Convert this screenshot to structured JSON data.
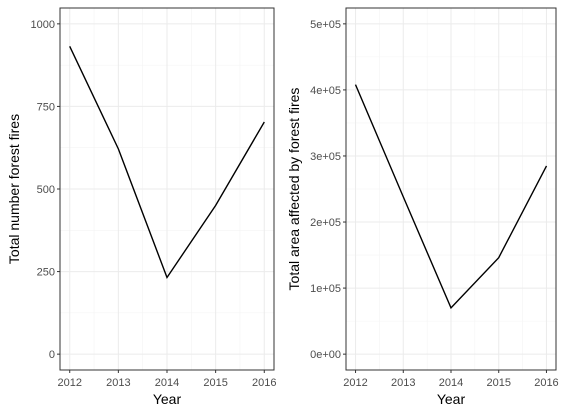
{
  "chart_data": [
    {
      "type": "line",
      "x": [
        2012,
        2013,
        2014,
        2015,
        2016
      ],
      "values": [
        932,
        621,
        232,
        450,
        703
      ],
      "xlabel": "Year",
      "ylabel": "Total number forest fires",
      "xlim": [
        2011.8,
        2016.2
      ],
      "ylim": [
        -48,
        1048
      ],
      "yticks": [
        0,
        250,
        500,
        750,
        1000
      ],
      "ytick_labels": [
        "0",
        "250",
        "500",
        "750",
        "1000"
      ],
      "xticks": [
        2012,
        2013,
        2014,
        2015,
        2016
      ],
      "xtick_labels": [
        "2012",
        "2013",
        "2014",
        "2015",
        "2016"
      ],
      "grid": true
    },
    {
      "type": "line",
      "x": [
        2012,
        2013,
        2014,
        2015,
        2016
      ],
      "values": [
        408000,
        238000,
        70000,
        146000,
        285000
      ],
      "xlabel": "Year",
      "ylabel": "Total area affected by forest fires",
      "xlim": [
        2011.8,
        2016.2
      ],
      "ylim": [
        -24000,
        524000
      ],
      "yticks": [
        0,
        100000,
        200000,
        300000,
        400000,
        500000
      ],
      "ytick_labels": [
        "0e+00",
        "1e+05",
        "2e+05",
        "3e+05",
        "4e+05",
        "5e+05"
      ],
      "xticks": [
        2012,
        2013,
        2014,
        2015,
        2016
      ],
      "xtick_labels": [
        "2012",
        "2013",
        "2014",
        "2015",
        "2016"
      ],
      "grid": true
    }
  ]
}
